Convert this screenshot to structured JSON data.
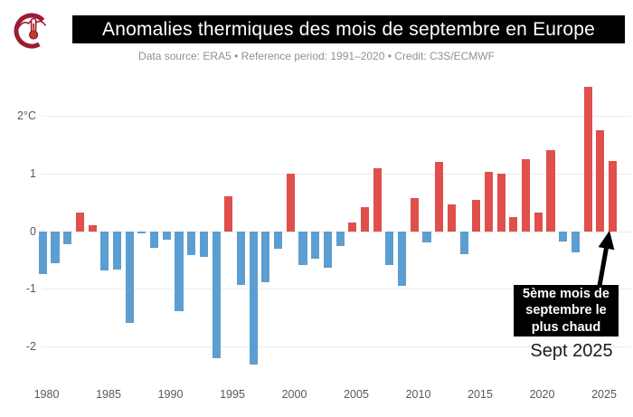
{
  "header": {
    "logo": "climate-thermometer-logo",
    "title": "Anomalies thermiques des mois de septembre en Europe",
    "subtitle": "Data source: ERA5 • Reference period: 1991–2020 • Credit: C3S/ECMWF"
  },
  "annotation": {
    "box_text": "5ème mois de\nseptembre le\nplus chaud",
    "caption": "Sept 2025"
  },
  "chart_data": {
    "type": "bar",
    "title": "Anomalies thermiques des mois de septembre en Europe",
    "subtitle": "Data source: ERA5 • Reference period: 1991–2020 • Credit: C3S/ECMWF",
    "unit": "°C",
    "x": [
      1979,
      1980,
      1981,
      1982,
      1983,
      1984,
      1985,
      1986,
      1987,
      1988,
      1989,
      1990,
      1991,
      1992,
      1993,
      1994,
      1995,
      1996,
      1997,
      1998,
      1999,
      2000,
      2001,
      2002,
      2003,
      2004,
      2005,
      2006,
      2007,
      2008,
      2009,
      2010,
      2011,
      2012,
      2013,
      2014,
      2015,
      2016,
      2017,
      2018,
      2019,
      2020,
      2021,
      2022,
      2023,
      2024,
      2025
    ],
    "values": [
      -0.75,
      -0.55,
      -0.22,
      0.33,
      0.1,
      -0.68,
      -0.67,
      -1.59,
      -0.04,
      -0.29,
      -0.15,
      -1.38,
      -0.41,
      -0.45,
      -2.21,
      0.61,
      -0.93,
      -2.32,
      -0.88,
      -0.3,
      1.0,
      -0.58,
      -0.47,
      -0.63,
      -0.26,
      0.15,
      0.42,
      1.1,
      -0.58,
      -0.95,
      0.57,
      -0.2,
      1.2,
      0.46,
      -0.4,
      0.55,
      1.03,
      1.0,
      0.25,
      1.25,
      0.33,
      1.41,
      -0.18,
      -0.37,
      2.5,
      1.76,
      1.22
    ],
    "x_tick_years": [
      1980,
      1985,
      1990,
      1995,
      2000,
      2005,
      2010,
      2015,
      2020,
      2025
    ],
    "y_ticks": [
      {
        "value": 2,
        "label": "2°C"
      },
      {
        "value": 1,
        "label": "1"
      },
      {
        "value": 0,
        "label": "0"
      },
      {
        "value": -1,
        "label": "-1"
      },
      {
        "value": -2,
        "label": "-2"
      }
    ],
    "ylim": [
      -2.6,
      2.7
    ],
    "grid": true,
    "legend": false,
    "colors": {
      "positive": "#e04f4b",
      "negative": "#5c9ed1"
    },
    "annotation": {
      "text": "5ème mois de septembre le plus chaud",
      "target_year": 2025,
      "caption": "Sept 2025"
    }
  }
}
